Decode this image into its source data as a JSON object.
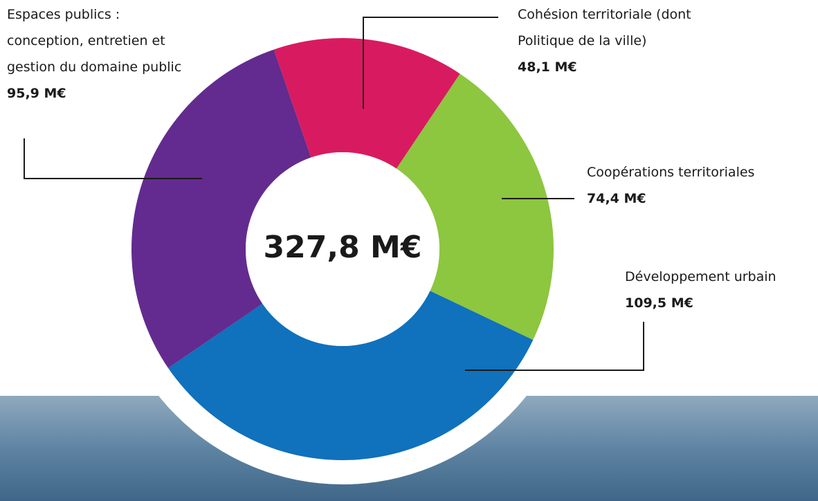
{
  "chart_data": {
    "type": "donut",
    "categories": [
      "Cohésion territoriale (dont Politique de la ville)",
      "Coopérations territoriales",
      "Développement urbain",
      "Espaces publics : conception, entretien et gestion du domaine public"
    ],
    "values": [
      48.1,
      74.4,
      109.5,
      95.9
    ],
    "value_labels": [
      "48,1 M€",
      "74,4 M€",
      "109,5 M€",
      "95,9 M€"
    ],
    "colors": [
      "#d81b60",
      "#8dc63f",
      "#1071bc",
      "#632b8f"
    ],
    "center_label": "327,8 M€"
  }
}
